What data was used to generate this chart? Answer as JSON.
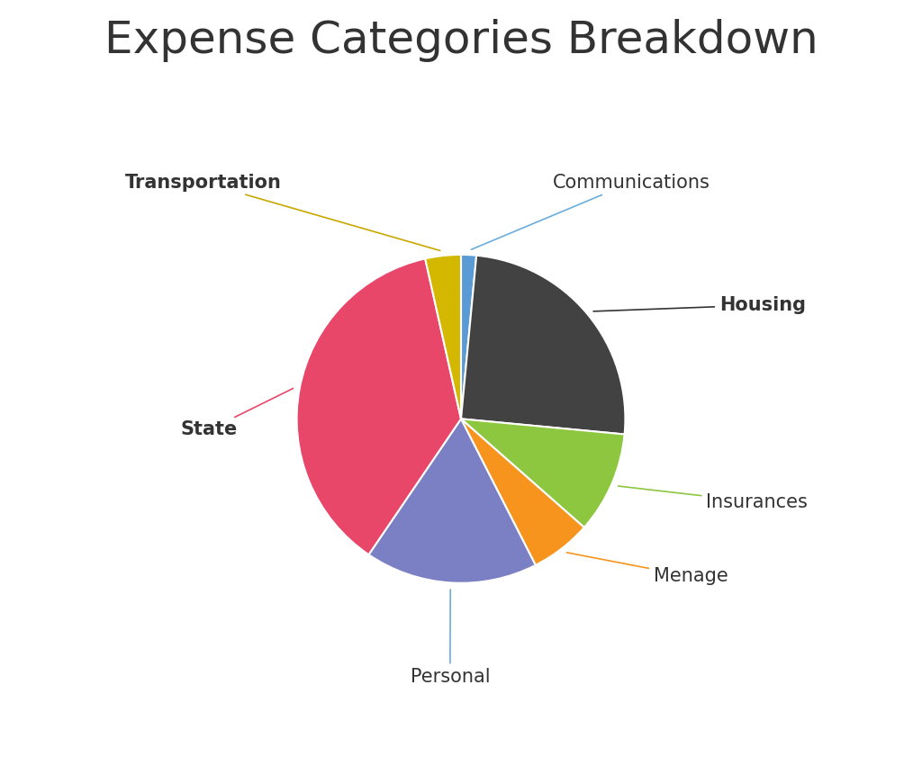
{
  "title": "Expense Categories Breakdown",
  "title_fontsize": 36,
  "title_color": "#333333",
  "categories": [
    "Communications",
    "Housing",
    "Insurances",
    "Menage",
    "Personal",
    "State",
    "Transportation"
  ],
  "values": [
    1.5,
    25,
    10,
    6,
    17,
    37,
    3.5
  ],
  "colors": [
    "#5b9bd5",
    "#424242",
    "#8dc63f",
    "#f7941d",
    "#7b7fc4",
    "#e8476a",
    "#d4b800"
  ],
  "label_fontsize": 15,
  "label_color": "#333333",
  "background_color": "#ffffff",
  "connector_colors": {
    "Communications": "#6aaddd",
    "Housing": "#333333",
    "Insurances": "#8dc63f",
    "Menage": "#f7941d",
    "Personal": "#6aaddd",
    "State": "#e8476a",
    "Transportation": "#c8a800"
  },
  "label_bold": {
    "Communications": false,
    "Housing": true,
    "Insurances": false,
    "Menage": false,
    "Personal": false,
    "State": true,
    "Transportation": true
  },
  "label_data_coords": {
    "Communications": [
      0.42,
      1.08
    ],
    "Housing": [
      1.18,
      0.52
    ],
    "Insurances": [
      1.12,
      -0.38
    ],
    "Menage": [
      0.88,
      -0.72
    ],
    "Personal": [
      -0.05,
      -1.18
    ],
    "State": [
      -1.28,
      -0.05
    ],
    "Transportation": [
      -0.82,
      1.08
    ]
  },
  "label_ha": {
    "Communications": "left",
    "Housing": "left",
    "Insurances": "left",
    "Menage": "left",
    "Personal": "center",
    "State": "left",
    "Transportation": "right"
  }
}
